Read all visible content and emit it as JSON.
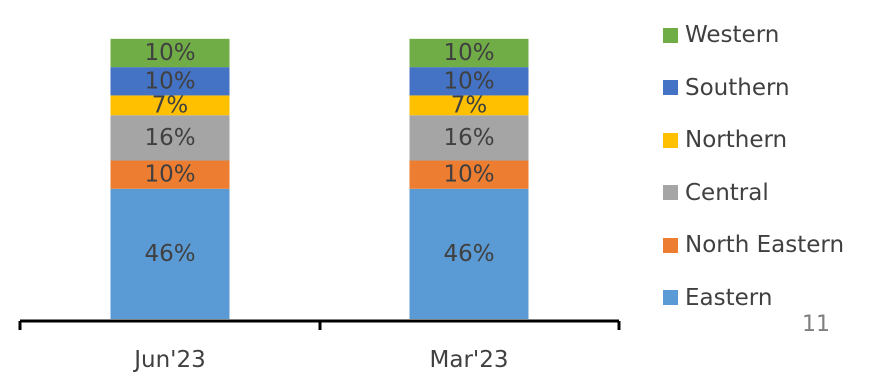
{
  "chart_data": {
    "type": "bar",
    "stacked": true,
    "categories": [
      "Jun'23",
      "Mar'23"
    ],
    "series": [
      {
        "name": "Eastern",
        "color": "#5b9bd5",
        "values": [
          46,
          46
        ],
        "labels": [
          "46%",
          "46%"
        ]
      },
      {
        "name": "North Eastern",
        "color": "#ed7d31",
        "values": [
          10,
          10
        ],
        "labels": [
          "10%",
          "10%"
        ]
      },
      {
        "name": "Central",
        "color": "#a5a5a5",
        "values": [
          16,
          16
        ],
        "labels": [
          "16%",
          "16%"
        ]
      },
      {
        "name": "Northern",
        "color": "#ffc000",
        "values": [
          7,
          7
        ],
        "labels": [
          "7%",
          "7%"
        ]
      },
      {
        "name": "Southern",
        "color": "#4472c4",
        "values": [
          10,
          10
        ],
        "labels": [
          "10%",
          "10%"
        ]
      },
      {
        "name": "Western",
        "color": "#70ad47",
        "values": [
          10,
          10
        ],
        "labels": [
          "10%",
          "10%"
        ]
      }
    ],
    "legend_position": "right",
    "grid": false
  },
  "page_number": "11"
}
